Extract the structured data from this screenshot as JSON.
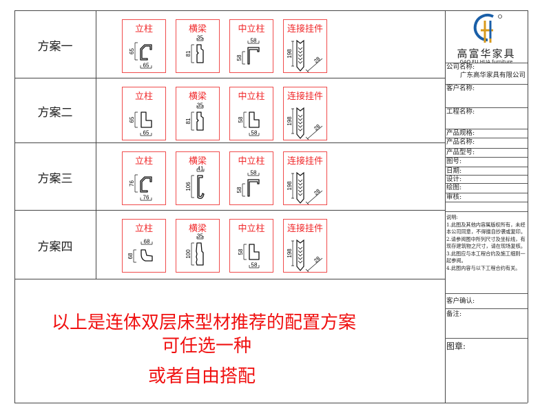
{
  "plans": [
    {
      "label": "方案一",
      "cards": [
        {
          "title": "立柱",
          "shape": "post-chamfer",
          "dims": [
            "65",
            "65"
          ]
        },
        {
          "title": "横梁",
          "shape": "beam-notch",
          "dims": [
            "35",
            "81"
          ]
        },
        {
          "title": "中立柱",
          "shape": "channel",
          "dims": [
            "58",
            "58"
          ]
        },
        {
          "title": "连接挂件",
          "shape": "connector",
          "dims": [
            "198",
            "28"
          ]
        }
      ]
    },
    {
      "label": "方案二",
      "cards": [
        {
          "title": "立柱",
          "shape": "post-l",
          "dims": [
            "65",
            "65"
          ]
        },
        {
          "title": "横梁",
          "shape": "beam-notch",
          "dims": [
            "35",
            "81"
          ]
        },
        {
          "title": "中立柱",
          "shape": "post-l-small",
          "dims": [
            "58",
            "58"
          ]
        },
        {
          "title": "连接挂件",
          "shape": "connector",
          "dims": [
            "198",
            "28"
          ]
        }
      ]
    },
    {
      "label": "方案三",
      "cards": [
        {
          "title": "立柱",
          "shape": "post-chamfer",
          "dims": [
            "76",
            "76"
          ]
        },
        {
          "title": "横梁",
          "shape": "beam-hook",
          "dims": [
            "41",
            "106"
          ]
        },
        {
          "title": "中立柱",
          "shape": "channel",
          "dims": [
            "58",
            "58"
          ]
        },
        {
          "title": "连接挂件",
          "shape": "connector",
          "dims": [
            "198",
            "28"
          ]
        }
      ]
    },
    {
      "label": "方案四",
      "cards": [
        {
          "title": "立柱",
          "shape": "post-curve",
          "dims": [
            "68",
            "68"
          ]
        },
        {
          "title": "横梁",
          "shape": "beam-wave",
          "dims": [
            "35",
            "100"
          ]
        },
        {
          "title": "中立柱",
          "shape": "post-l-small",
          "dims": [
            "58",
            "58"
          ]
        },
        {
          "title": "连接挂件",
          "shape": "connector",
          "dims": [
            "198",
            "28"
          ]
        }
      ]
    }
  ],
  "summary": {
    "line1": "以上是连体双层床型材推荐的配置方案",
    "line2": "可任选一种",
    "line3": "或者自由搭配"
  },
  "titleblock": {
    "logo_cn": "高富华家具",
    "logo_en": "GAO FU HUA furniture",
    "logo_mark": "GFH",
    "company_label": "公司名称:",
    "company_value": "广东高华家具有限公司",
    "client_label": "客户名称:",
    "project_label": "工程名称:",
    "spec_label": "产品规格:",
    "name_label": "产品名称:",
    "model_label": "产品型号:",
    "drawing_no_label": "图号:",
    "date_label": "日期:",
    "design_label": "设计:",
    "draw_label": "绘图:",
    "review_label": "审核:",
    "notes": [
      "说明:",
      "1.此图及其他内容属版权所有，未经本公司同意，不得擅自抄袭或复印。",
      "2.请参阅图中所列尺寸及坐标线，有现存建筑物之尺寸，请在现场复核。",
      "3.此图应与本工程合约及施工细则一起参阅。",
      "4.此图内容与以下工程合约有关。"
    ],
    "confirm_label": "客户确认:",
    "remark_label": "备注:",
    "seal_label": "图章:"
  },
  "colors": {
    "accent": "#f0282a",
    "logo_blue": "#1a5fa8",
    "logo_gold": "#d89a1c"
  }
}
